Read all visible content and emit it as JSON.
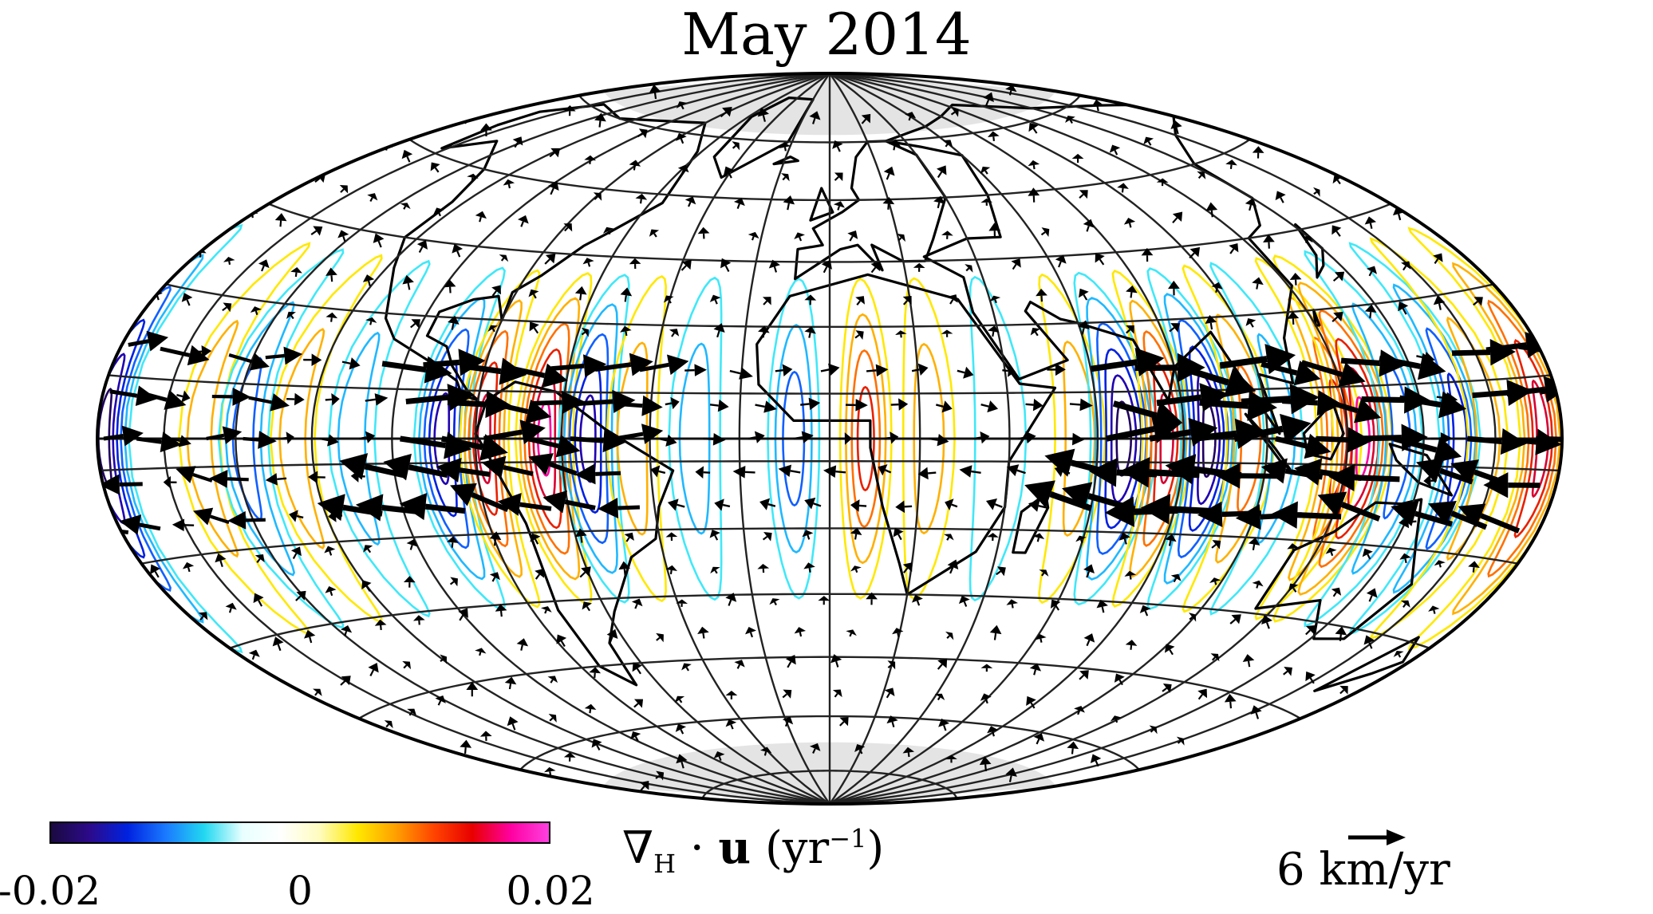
{
  "title": "May 2014",
  "colorbar": {
    "min_label": "-0.02",
    "mid_label": "0",
    "max_label": "0.02",
    "range": [
      -0.02,
      0.02
    ],
    "label_symbol": "∇",
    "label_sub": "H",
    "label_dot": " · ",
    "label_vec": "u",
    "label_unit_open": " (yr",
    "label_unit_exp": "−1",
    "label_unit_close": ")",
    "colors": [
      "#1a0a40",
      "#2c0a8a",
      "#0022e0",
      "#1a7aff",
      "#22d8f0",
      "#e8ffff",
      "#ffffff",
      "#fffcc0",
      "#ffe800",
      "#ffa000",
      "#ff4400",
      "#e80000",
      "#ff00a0",
      "#ff40e0"
    ]
  },
  "scale_arrow": {
    "label": "6 km/yr",
    "value_km_per_yr": 6
  },
  "map": {
    "projection": "Hammer-Aitoff",
    "central_meridian": "0°",
    "polar_caps_shaded": true,
    "cap_color": "#e4e4e4",
    "graticule_color": "#222222"
  }
}
